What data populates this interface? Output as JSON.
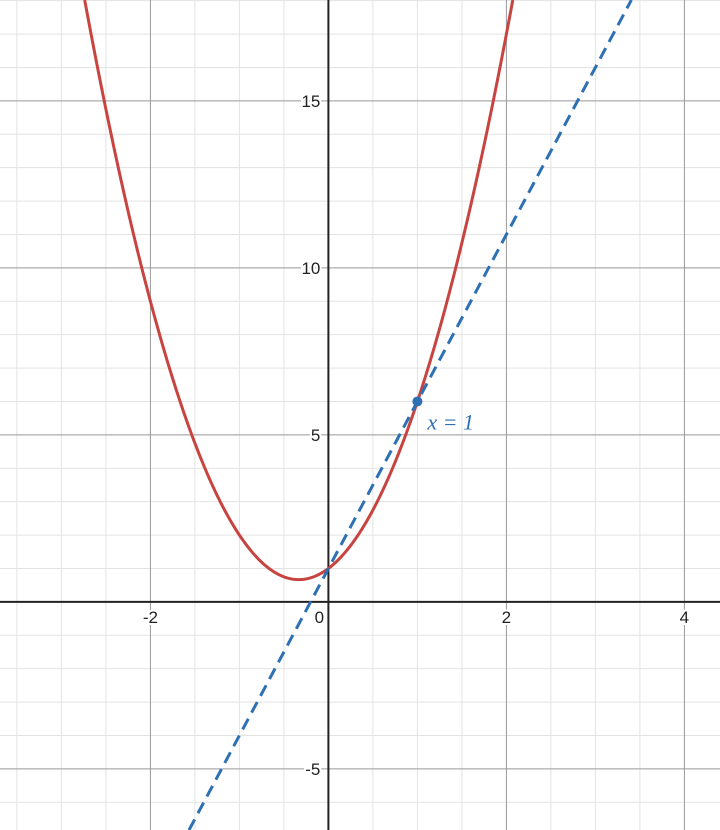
{
  "chart_data": {
    "type": "line",
    "title": "",
    "xlabel": "",
    "ylabel": "",
    "xlim": [
      -3.69,
      4.4
    ],
    "ylim": [
      -6.83,
      18.02
    ],
    "grid": true,
    "x_ticks": [
      -2,
      0,
      2,
      4
    ],
    "x_tick_labels": [
      "-2",
      "0",
      "2",
      "4"
    ],
    "y_ticks": [
      -5,
      5,
      10,
      15
    ],
    "y_tick_labels": [
      "-5",
      "5",
      "10",
      "15"
    ],
    "series": [
      {
        "kind": "curve",
        "expression": "3x^2+2x+1",
        "coefficients": [
          3,
          2,
          1
        ],
        "color": "#c74440",
        "style": "solid"
      },
      {
        "kind": "line",
        "expression": "5x+1",
        "slope": 5,
        "intercept": 1,
        "color": "#2d70b3",
        "style": "dashed"
      }
    ],
    "points": [
      {
        "x": 1,
        "y": 6,
        "color": "#2d70b3",
        "label": "x = 1"
      }
    ]
  }
}
